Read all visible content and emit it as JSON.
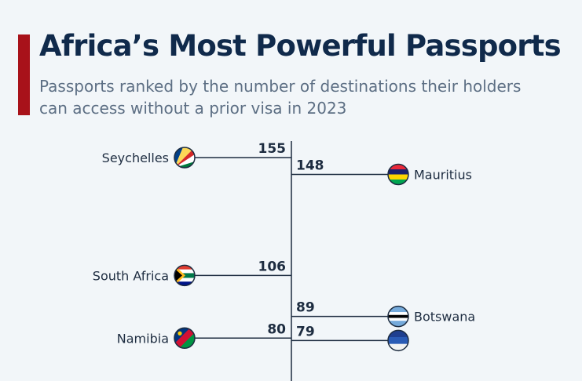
{
  "header": {
    "title": "Africa’s Most Powerful Passports",
    "subtitle": "Passports ranked by the number of destinations their holders can access without a prior visa in 2023"
  },
  "colors": {
    "accent": "#a8121a",
    "title": "#102a4b",
    "axis": "#1d2c40"
  },
  "chart_data": {
    "type": "bar",
    "orientation": "diverging timeline",
    "categories": [
      "Seychelles",
      "Mauritius",
      "South Africa",
      "Botswana",
      "Namibia",
      ""
    ],
    "values": [
      155,
      148,
      106,
      89,
      80,
      79
    ],
    "sides": [
      "left",
      "right",
      "left",
      "right",
      "left",
      "right"
    ],
    "flags": [
      "seychelles-flag",
      "mauritius-flag",
      "south-africa-flag",
      "botswana-flag",
      "namibia-flag",
      "unknown-flag"
    ],
    "title": "Africa’s Most Powerful Passports",
    "subtitle": "Passports ranked by the number of destinations their holders can access without a prior visa in 2023"
  }
}
